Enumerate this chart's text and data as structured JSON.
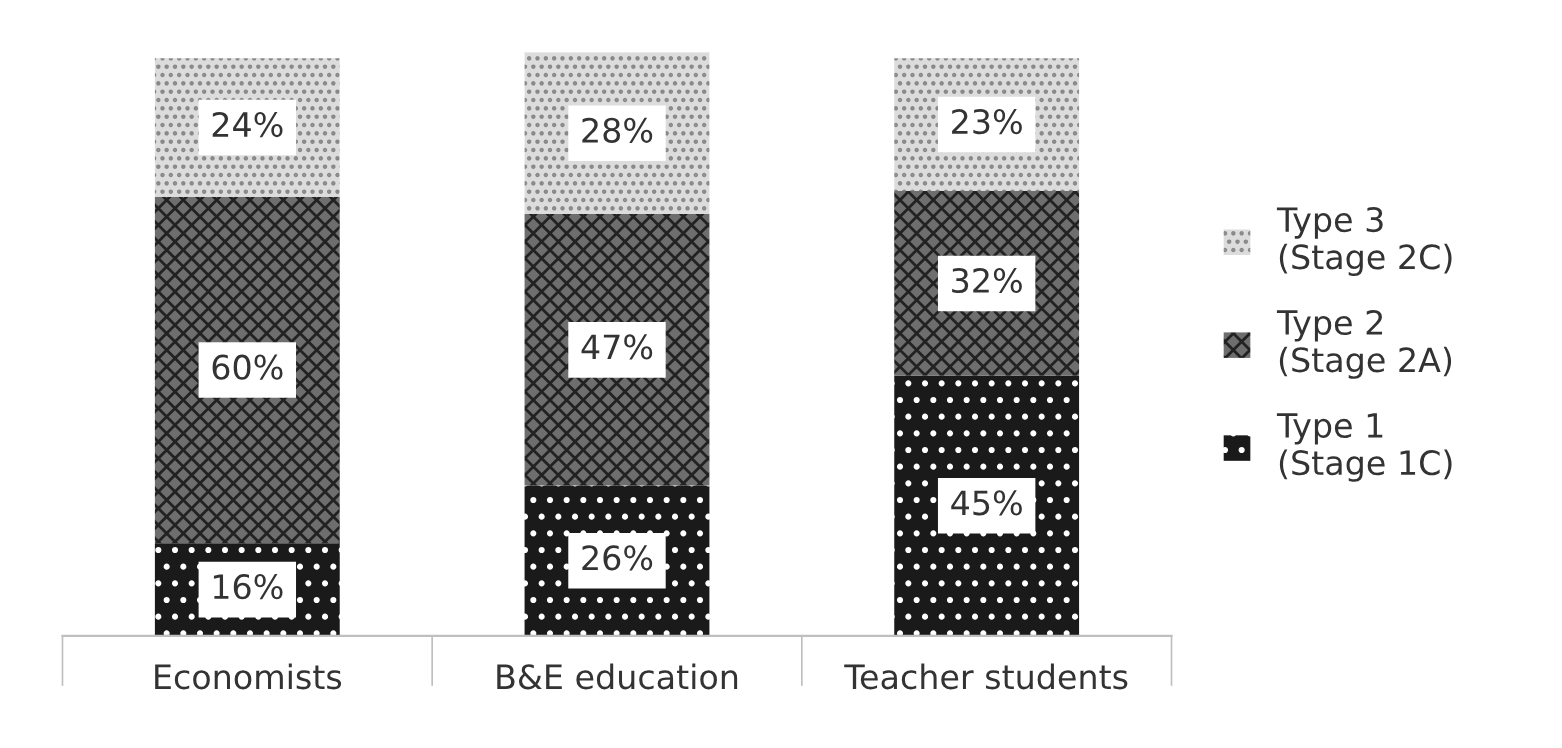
{
  "chart_data": {
    "type": "bar",
    "stacked": true,
    "legend": "right",
    "grid": false,
    "categories": [
      "Economists",
      "B&E education",
      "Teacher students"
    ],
    "series": [
      {
        "name": "Type 1\n(Stage 1C)",
        "color": "#1a1a1a",
        "values": [
          16,
          26,
          45
        ],
        "value_labels": [
          "16%",
          "26%",
          "45%"
        ]
      },
      {
        "name": "Type 2\n(Stage 2A)",
        "color": "#6e6e6e",
        "values": [
          60,
          47,
          32
        ],
        "value_labels": [
          "60%",
          "47%",
          "32%"
        ]
      },
      {
        "name": "Type 3\n(Stage 2C)",
        "color": "#dcdcdc",
        "values": [
          24,
          28,
          23
        ],
        "value_labels": [
          "24%",
          "28%",
          "23%"
        ]
      }
    ]
  }
}
